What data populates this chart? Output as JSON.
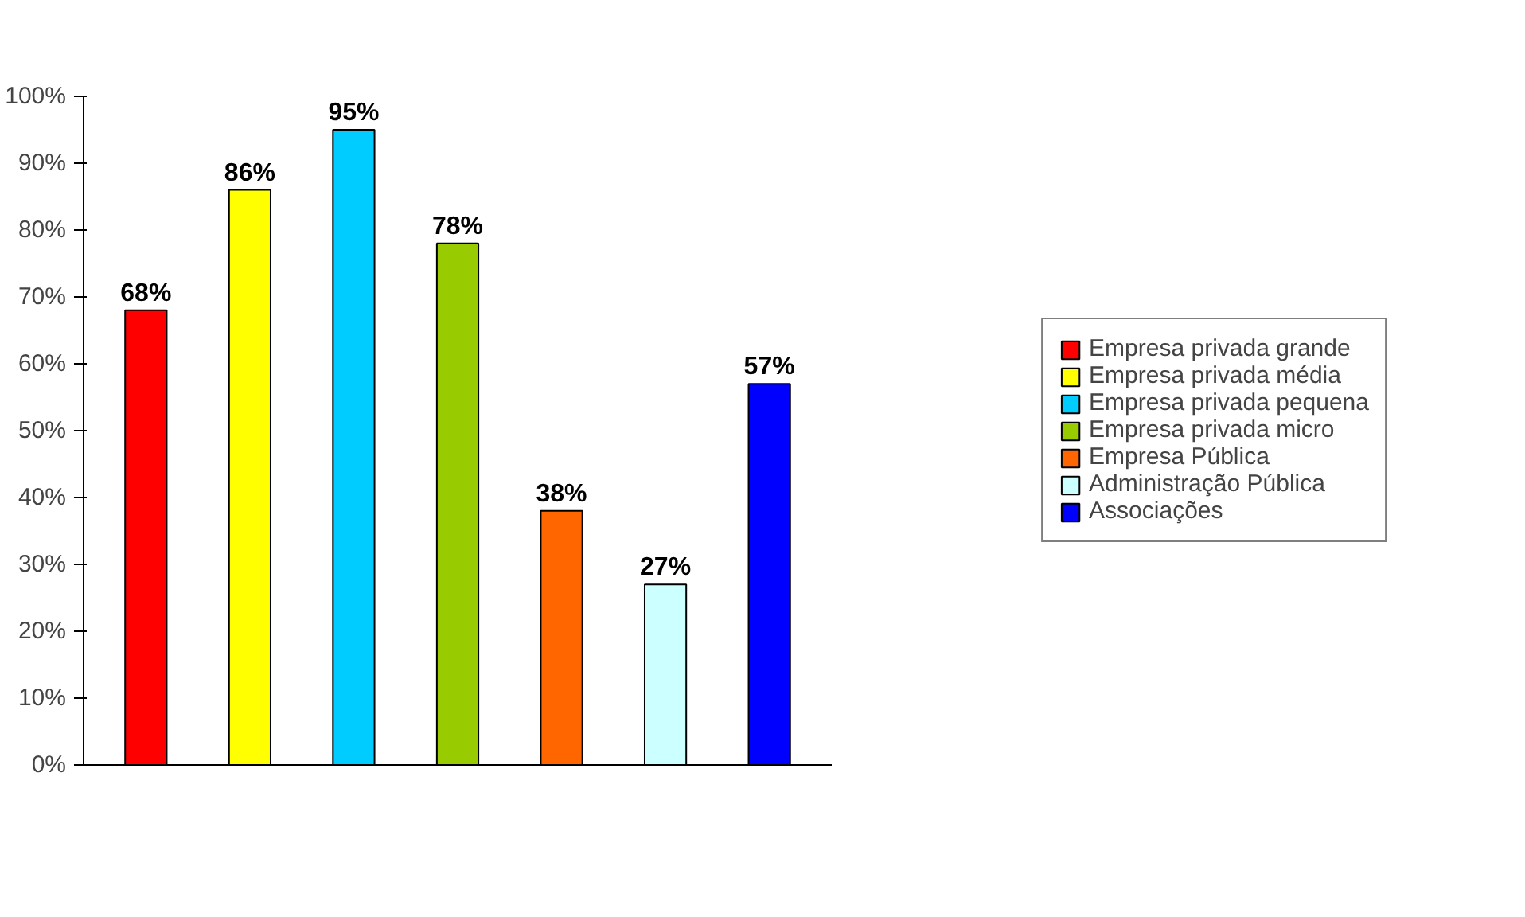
{
  "chart_data": {
    "type": "bar",
    "categories": [
      null,
      null,
      null,
      null,
      null,
      null,
      null
    ],
    "series": [
      {
        "name": "Empresa privada grande",
        "color": "#ff0000",
        "values": [
          68,
          null,
          null,
          null,
          null,
          null,
          null
        ],
        "value_labels": [
          "68%",
          null,
          null,
          null,
          null,
          null,
          null
        ]
      },
      {
        "name": "Empresa privada média",
        "color": "#ffff00",
        "values": [
          null,
          86,
          null,
          null,
          null,
          null,
          null
        ],
        "value_labels": [
          null,
          "86%",
          null,
          null,
          null,
          null,
          null
        ]
      },
      {
        "name": "Empresa privada pequena",
        "color": "#00ccff",
        "values": [
          null,
          null,
          95,
          null,
          null,
          null,
          null
        ],
        "value_labels": [
          null,
          null,
          "95%",
          null,
          null,
          null,
          null
        ]
      },
      {
        "name": "Empresa privada micro",
        "color": "#99cc00",
        "values": [
          null,
          null,
          null,
          78,
          null,
          null,
          null
        ],
        "value_labels": [
          null,
          null,
          null,
          "78%",
          null,
          null,
          null
        ]
      },
      {
        "name": "Empresa Pública",
        "color": "#ff6600",
        "values": [
          null,
          null,
          null,
          null,
          38,
          null,
          null
        ],
        "value_labels": [
          null,
          null,
          null,
          null,
          "38%",
          null,
          null
        ]
      },
      {
        "name": "Administração Pública",
        "color": "#ccffff",
        "values": [
          null,
          null,
          null,
          null,
          null,
          27,
          null
        ],
        "value_labels": [
          null,
          null,
          null,
          null,
          null,
          "27%",
          null
        ]
      },
      {
        "name": "Associações",
        "color": "#0000ff",
        "values": [
          null,
          null,
          null,
          null,
          null,
          null,
          57
        ],
        "value_labels": [
          null,
          null,
          null,
          null,
          null,
          null,
          "57%"
        ]
      }
    ],
    "ylim": [
      0,
      100
    ],
    "yticks": [
      {
        "value": 0,
        "label": "0%"
      },
      {
        "value": 10,
        "label": "10%"
      },
      {
        "value": 20,
        "label": "20%"
      },
      {
        "value": 30,
        "label": "30%"
      },
      {
        "value": 40,
        "label": "40%"
      },
      {
        "value": 50,
        "label": "50%"
      },
      {
        "value": 60,
        "label": "60%"
      },
      {
        "value": 70,
        "label": "70%"
      },
      {
        "value": 80,
        "label": "80%"
      },
      {
        "value": 90,
        "label": "90%"
      },
      {
        "value": 100,
        "label": "100%"
      }
    ],
    "tick_labels": "y",
    "legend": "right"
  }
}
